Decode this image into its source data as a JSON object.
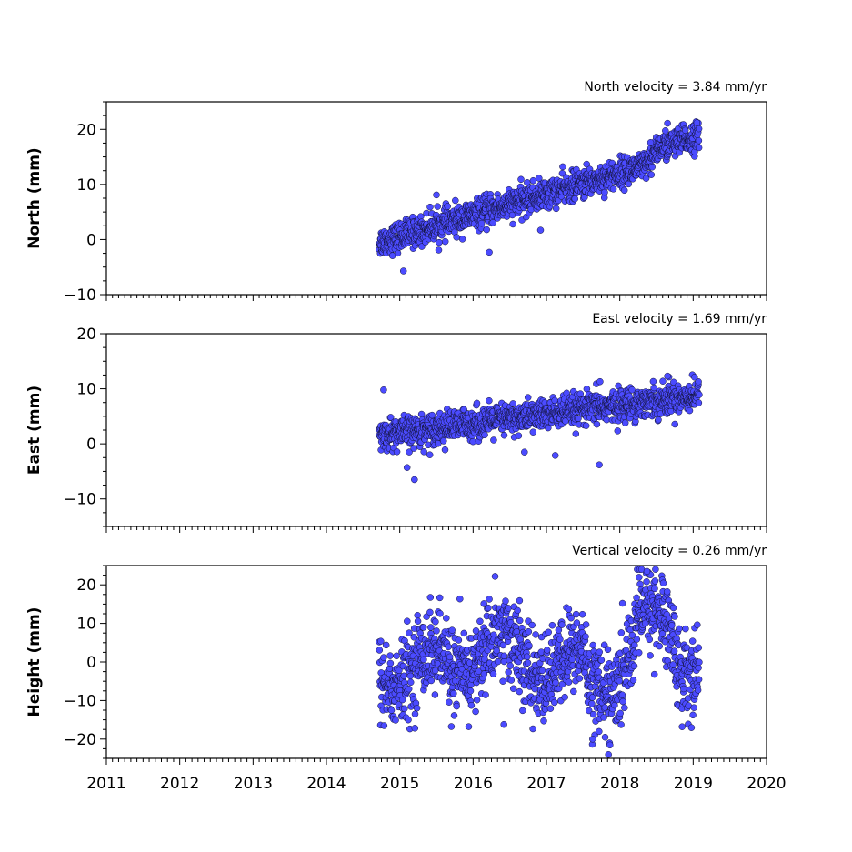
{
  "chart_data": [
    {
      "type": "scatter",
      "title": "North velocity = 3.84 mm/yr",
      "ylabel": "North (mm)",
      "ylim": [
        -10,
        25
      ],
      "yticks": [
        -10,
        0,
        10,
        20
      ],
      "ytick_labels": [
        "−10",
        "0",
        "10",
        "20"
      ],
      "xlim": [
        2011,
        2020
      ],
      "velocity_mm_per_yr": 3.84,
      "series": [
        {
          "x_start": 2014.72,
          "x_end": 2019.08,
          "intercept_at_2014_72": -0.5,
          "noise_sd_mm": 1.3,
          "outliers": [
            [
              2015.05,
              -5.7
            ],
            [
              2016.22,
              -2.3
            ],
            [
              2016.92,
              1.7
            ],
            [
              2015.5,
              8.1
            ],
            [
              2018.42,
              17.6
            ],
            [
              2018.65,
              21.1
            ],
            [
              2019.05,
              21.2
            ]
          ]
        }
      ]
    },
    {
      "type": "scatter",
      "title": "East velocity = 1.69 mm/yr",
      "ylabel": "East (mm)",
      "ylim": [
        -15,
        20
      ],
      "yticks": [
        -10,
        0,
        10,
        20
      ],
      "ytick_labels": [
        "−10",
        "0",
        "10",
        "20"
      ],
      "xlim": [
        2011,
        2020
      ],
      "velocity_mm_per_yr": 1.69,
      "series": [
        {
          "x_start": 2014.72,
          "x_end": 2019.08,
          "intercept_at_2014_72": 1.5,
          "noise_sd_mm": 1.4,
          "outliers": [
            [
              2014.78,
              9.8
            ],
            [
              2015.2,
              -6.5
            ],
            [
              2015.1,
              -4.3
            ],
            [
              2017.12,
              -2.1
            ],
            [
              2017.72,
              -3.8
            ],
            [
              2017.73,
              11.3
            ],
            [
              2018.65,
              12.3
            ],
            [
              2016.7,
              -1.5
            ]
          ]
        }
      ]
    },
    {
      "type": "scatter",
      "title": "Vertical velocity = 0.26 mm/yr",
      "ylabel": "Height (mm)",
      "ylim": [
        -25,
        25
      ],
      "yticks": [
        -20,
        -10,
        0,
        10,
        20
      ],
      "ytick_labels": [
        "−20",
        "−10",
        "0",
        "10",
        "20"
      ],
      "xlim": [
        2011,
        2020
      ],
      "xticks": [
        2011,
        2012,
        2013,
        2014,
        2015,
        2016,
        2017,
        2018,
        2019,
        2020
      ],
      "xtick_labels": [
        "2011",
        "2012",
        "2013",
        "2014",
        "2015",
        "2016",
        "2017",
        "2018",
        "2019",
        "2020"
      ],
      "velocity_mm_per_yr": 0.26,
      "series": [
        {
          "x_start": 2014.72,
          "x_end": 2019.08,
          "seasonal_amplitude_mm": 5,
          "noise_sd_mm": 5.5,
          "outliers": [
            [
              2016.3,
              22.2
            ],
            [
              2018.37,
              23.5
            ],
            [
              2018.48,
              21.0
            ],
            [
              2017.8,
              -19.5
            ],
            [
              2017.63,
              -20.0
            ],
            [
              2018.85,
              -16.8
            ],
            [
              2016.42,
              -16.2
            ]
          ]
        }
      ]
    }
  ],
  "colors": {
    "marker_fill": "#4b4bff",
    "marker_edge": "#111133"
  }
}
